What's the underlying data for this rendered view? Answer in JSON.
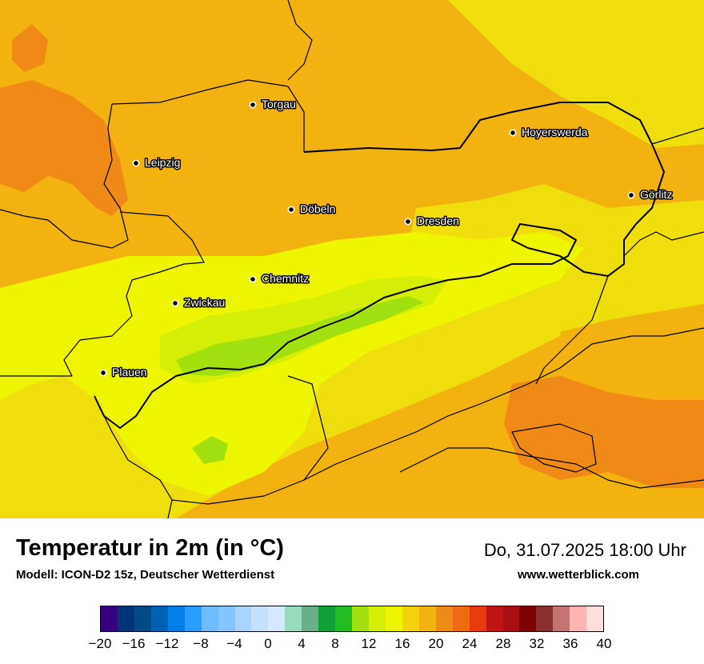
{
  "map": {
    "colors": {
      "background": "#f3c30d",
      "warm_orange": "#f08a16",
      "mid_orange": "#f2b20f",
      "yellow": "#f0de0c",
      "light_yellow": "#eef500",
      "yellow_green": "#d4ef05",
      "green": "#a3e010",
      "border": "#000000"
    },
    "cities": [
      {
        "name": "Torgau"
      },
      {
        "name": "Hoyerswerda"
      },
      {
        "name": "Leipzig"
      },
      {
        "name": "Görlitz"
      },
      {
        "name": "Döbeln"
      },
      {
        "name": "Dresden"
      },
      {
        "name": "Chemnitz"
      },
      {
        "name": "Zwickau"
      },
      {
        "name": "Plauen"
      }
    ]
  },
  "footer": {
    "title": "Temperatur in 2m (in °C)",
    "model": "Modell: ICON-D2 15z, Deutscher Wetterdienst",
    "datetime": "Do, 31.07.2025 18:00 Uhr",
    "website": "www.wetterblick.com"
  },
  "legend": {
    "unit": "°C",
    "min": -20,
    "max": 40,
    "step": 2,
    "colors": [
      "#37007f",
      "#003478",
      "#004a88",
      "#0060b8",
      "#0080e8",
      "#2a9dff",
      "#6ebcff",
      "#86c6ff",
      "#a6d5ff",
      "#c4e2ff",
      "#d6eaff",
      "#96dcbe",
      "#6aae8a",
      "#10a038",
      "#20be20",
      "#a2e010",
      "#d4ef05",
      "#eef500",
      "#f2d20d",
      "#f2b20f",
      "#f08a16",
      "#f06a14",
      "#e83a10",
      "#c01414",
      "#a81014",
      "#7c0004",
      "#8a2f2f",
      "#c47272",
      "#ffb4b4",
      "#ffdede"
    ],
    "tick_labels": [
      "−20",
      "−16",
      "−12",
      "−8",
      "−4",
      "0",
      "4",
      "8",
      "12",
      "16",
      "20",
      "24",
      "28",
      "32",
      "36",
      "40"
    ]
  }
}
